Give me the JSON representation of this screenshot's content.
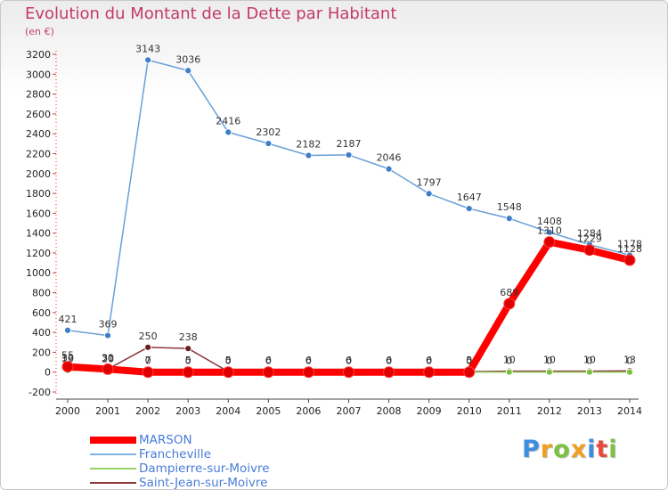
{
  "title": "Evolution du Montant de la Dette par Habitant",
  "subtitle": "(en €)",
  "logo": {
    "text": "Proxiti",
    "letters": [
      {
        "ch": "P",
        "color": "#3d8de0"
      },
      {
        "ch": "r",
        "color": "#f0a020"
      },
      {
        "ch": "o",
        "color": "#7dc142"
      },
      {
        "ch": "x",
        "color": "#f0a020"
      },
      {
        "ch": "i",
        "color": "#3d8de0"
      },
      {
        "ch": "t",
        "color": "#e84a3a"
      },
      {
        "ch": "i",
        "color": "#7dc142"
      }
    ]
  },
  "legend": [
    {
      "label": "MARSON",
      "color": "#ff0000",
      "width": 8
    },
    {
      "label": "Francheville",
      "color": "#80b4e0",
      "width": 2
    },
    {
      "label": "Dampierre-sur-Moivre",
      "color": "#99d166",
      "width": 2
    },
    {
      "label": "Saint-Jean-sur-Moivre",
      "color": "#8b3a3a",
      "width": 2
    }
  ],
  "chart_data": {
    "type": "line",
    "x": [
      "2000",
      "2001",
      "2002",
      "2003",
      "2004",
      "2005",
      "2006",
      "2007",
      "2008",
      "2009",
      "2010",
      "2011",
      "2012",
      "2013",
      "2014"
    ],
    "ylim": [
      -200,
      3200
    ],
    "yticks": [
      -200,
      0,
      200,
      400,
      600,
      800,
      1000,
      1200,
      1400,
      1600,
      1800,
      2000,
      2200,
      2400,
      2600,
      2800,
      3000,
      3200
    ],
    "grid": false,
    "series": [
      {
        "name": "Francheville",
        "color": "#6aa0d8",
        "marker_color": "#3d7ec8",
        "values": [
          421,
          369,
          3143,
          3036,
          2416,
          2302,
          2182,
          2187,
          2046,
          1797,
          1647,
          1548,
          1408,
          1284,
          1178
        ],
        "labels": [
          "421",
          "369",
          "3143",
          "3036",
          "2416",
          "2302",
          "2182",
          "2187",
          "2046",
          "1797",
          "1647",
          "1548",
          "1408",
          "1284",
          "1178"
        ]
      },
      {
        "name": "Saint-Jean-sur-Moivre",
        "color": "#8b3a3a",
        "marker_color": "#6a1f1f",
        "values": [
          30,
          31,
          250,
          238,
          5,
          6,
          6,
          6,
          6,
          6,
          5,
          10,
          10,
          10,
          13
        ],
        "labels": [
          "30",
          "31",
          "250",
          "238",
          "5",
          "6",
          "6",
          "6",
          "6",
          "6",
          "5",
          "10",
          "10",
          "10",
          "13"
        ]
      },
      {
        "name": "Dampierre-sur-Moivre",
        "color": "#99d166",
        "marker_color": "#7cbf3a",
        "values": [
          19,
          20,
          7,
          5,
          0,
          0,
          0,
          0,
          0,
          0,
          0,
          0,
          0,
          0,
          0
        ],
        "labels": [
          "19",
          "20",
          "7",
          "5",
          "0",
          "0",
          "0",
          "0",
          "0",
          "0",
          "0",
          "0",
          "0",
          "0",
          "0"
        ]
      },
      {
        "name": "MARSON",
        "color": "#ff0000",
        "marker_color": "#e00000",
        "values": [
          55,
          30,
          0,
          0,
          0,
          0,
          0,
          0,
          0,
          0,
          0,
          689,
          1310,
          1229,
          1128
        ],
        "labels": [
          "55",
          "30",
          "0",
          "0",
          "0",
          "0",
          "0",
          "0",
          "0",
          "0",
          "0",
          "689",
          "1310",
          "1229",
          "1128"
        ]
      }
    ]
  }
}
